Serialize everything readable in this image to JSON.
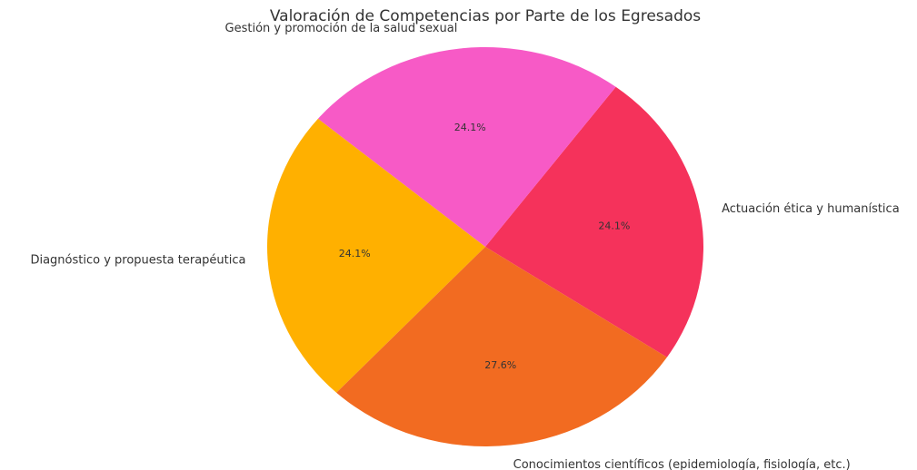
{
  "chart_data": {
    "type": "pie",
    "title": "Valoración de Competencias por Parte de los Egresados",
    "categories": [
      "Actuación ética y humanística",
      "Gestión y promoción de la salud sexual",
      "Diagnóstico y propuesta terapéutica",
      "Conocimientos científicos (epidemiología, fisiología, etc.)"
    ],
    "values": [
      24.1,
      24.1,
      24.1,
      27.6
    ],
    "value_labels": [
      "24.1%",
      "24.1%",
      "24.1%",
      "27.6%"
    ],
    "colors": [
      "#f5325b",
      "#f75ac6",
      "#ffb000",
      "#f26b21"
    ]
  }
}
